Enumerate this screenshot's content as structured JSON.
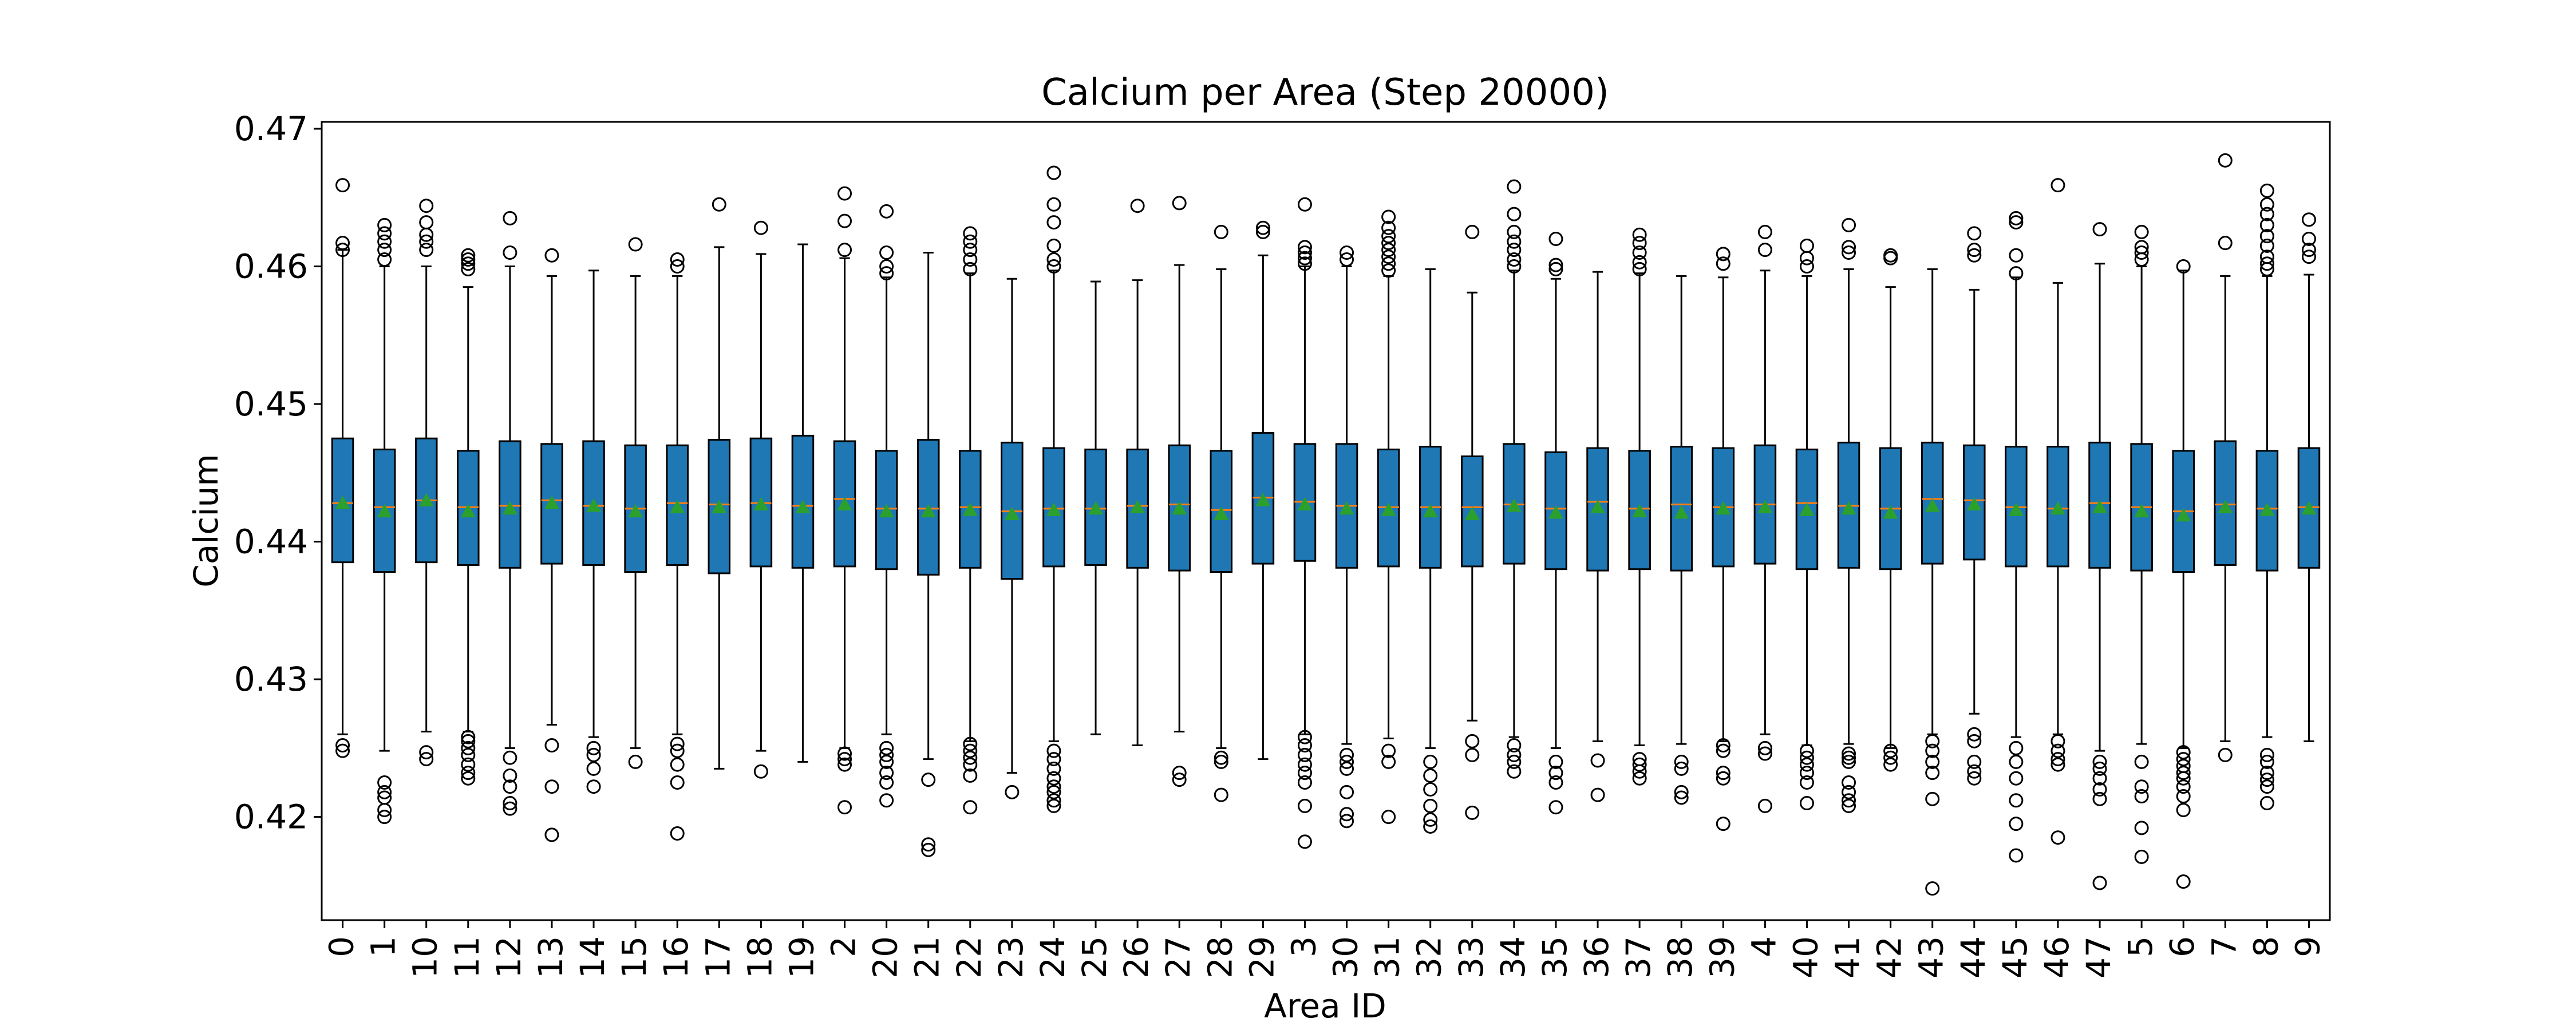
{
  "chart_data": {
    "type": "boxplot",
    "title": "Calcium per Area (Step 20000)",
    "xlabel": "Area ID",
    "ylabel": "Calcium",
    "ylim": [
      0.4125,
      0.4705
    ],
    "yticks": [
      0.42,
      0.43,
      0.44,
      0.45,
      0.46,
      0.47
    ],
    "grid": false,
    "colors": {
      "box_fill": "#1f77b4",
      "median": "#ff7f0e",
      "mean_marker": "#2ca02c",
      "edge": "#000000"
    },
    "boxes": [
      {
        "label": "0",
        "whislo": 0.426,
        "q1": 0.4385,
        "med": 0.4428,
        "mean": 0.4428,
        "q3": 0.4475,
        "whishi": 0.4612,
        "fliers": [
          0.4248,
          0.4252,
          0.4617,
          0.4612,
          0.4659
        ]
      },
      {
        "label": "1",
        "whislo": 0.4248,
        "q1": 0.4378,
        "med": 0.4425,
        "mean": 0.4422,
        "q3": 0.4467,
        "whishi": 0.46,
        "fliers": [
          0.42,
          0.4205,
          0.4214,
          0.4218,
          0.4225,
          0.4605,
          0.4612,
          0.4618,
          0.4624,
          0.463
        ]
      },
      {
        "label": "10",
        "whislo": 0.4262,
        "q1": 0.4385,
        "med": 0.443,
        "mean": 0.443,
        "q3": 0.4475,
        "whishi": 0.46,
        "fliers": [
          0.4242,
          0.4247,
          0.4612,
          0.4618,
          0.4623,
          0.4632,
          0.4644
        ]
      },
      {
        "label": "11",
        "whislo": 0.4262,
        "q1": 0.4383,
        "med": 0.4425,
        "mean": 0.4422,
        "q3": 0.4466,
        "whishi": 0.4585,
        "fliers": [
          0.4228,
          0.4232,
          0.4238,
          0.4245,
          0.425,
          0.4255,
          0.4258,
          0.4598,
          0.4602,
          0.4605,
          0.4608
        ]
      },
      {
        "label": "12",
        "whislo": 0.425,
        "q1": 0.4381,
        "med": 0.4426,
        "mean": 0.4424,
        "q3": 0.4473,
        "whishi": 0.46,
        "fliers": [
          0.4206,
          0.421,
          0.4222,
          0.423,
          0.4243,
          0.461,
          0.4635
        ]
      },
      {
        "label": "13",
        "whislo": 0.4267,
        "q1": 0.4384,
        "med": 0.443,
        "mean": 0.4428,
        "q3": 0.4471,
        "whishi": 0.4593,
        "fliers": [
          0.4187,
          0.4222,
          0.4252,
          0.4608
        ]
      },
      {
        "label": "14",
        "whislo": 0.4258,
        "q1": 0.4383,
        "med": 0.4426,
        "mean": 0.4426,
        "q3": 0.4473,
        "whishi": 0.4597,
        "fliers": [
          0.4222,
          0.4235,
          0.4245,
          0.425
        ]
      },
      {
        "label": "15",
        "whislo": 0.425,
        "q1": 0.4378,
        "med": 0.4424,
        "mean": 0.4422,
        "q3": 0.447,
        "whishi": 0.4593,
        "fliers": [
          0.424,
          0.4616
        ]
      },
      {
        "label": "16",
        "whislo": 0.426,
        "q1": 0.4383,
        "med": 0.4428,
        "mean": 0.4425,
        "q3": 0.447,
        "whishi": 0.4593,
        "fliers": [
          0.4188,
          0.4225,
          0.4238,
          0.4248,
          0.4253,
          0.46,
          0.4605
        ]
      },
      {
        "label": "17",
        "whislo": 0.4235,
        "q1": 0.4377,
        "med": 0.4427,
        "mean": 0.4425,
        "q3": 0.4474,
        "whishi": 0.4614,
        "fliers": [
          0.4645
        ]
      },
      {
        "label": "18",
        "whislo": 0.4248,
        "q1": 0.4382,
        "med": 0.4428,
        "mean": 0.4427,
        "q3": 0.4475,
        "whishi": 0.4609,
        "fliers": [
          0.4233,
          0.4628
        ]
      },
      {
        "label": "19",
        "whislo": 0.424,
        "q1": 0.4381,
        "med": 0.4426,
        "mean": 0.4425,
        "q3": 0.4477,
        "whishi": 0.4616,
        "fliers": []
      },
      {
        "label": "2",
        "whislo": 0.425,
        "q1": 0.4382,
        "med": 0.4431,
        "mean": 0.4427,
        "q3": 0.4473,
        "whishi": 0.4606,
        "fliers": [
          0.4207,
          0.4238,
          0.4242,
          0.4246,
          0.4612,
          0.4633,
          0.4653
        ]
      },
      {
        "label": "20",
        "whislo": 0.426,
        "q1": 0.438,
        "med": 0.4424,
        "mean": 0.4422,
        "q3": 0.4466,
        "whishi": 0.4592,
        "fliers": [
          0.4212,
          0.4225,
          0.4232,
          0.424,
          0.4245,
          0.425,
          0.4595,
          0.46,
          0.461,
          0.464
        ]
      },
      {
        "label": "21",
        "whislo": 0.4242,
        "q1": 0.4376,
        "med": 0.4424,
        "mean": 0.4422,
        "q3": 0.4474,
        "whishi": 0.461,
        "fliers": [
          0.4176,
          0.418,
          0.4227
        ]
      },
      {
        "label": "22",
        "whislo": 0.4255,
        "q1": 0.4381,
        "med": 0.4425,
        "mean": 0.4423,
        "q3": 0.4466,
        "whishi": 0.4595,
        "fliers": [
          0.4207,
          0.423,
          0.4238,
          0.4243,
          0.4248,
          0.4253,
          0.4598,
          0.4605,
          0.4612,
          0.4618,
          0.4624
        ]
      },
      {
        "label": "23",
        "whislo": 0.4232,
        "q1": 0.4373,
        "med": 0.4422,
        "mean": 0.442,
        "q3": 0.4472,
        "whishi": 0.4591,
        "fliers": [
          0.4218
        ]
      },
      {
        "label": "24",
        "whislo": 0.4255,
        "q1": 0.4382,
        "med": 0.4424,
        "mean": 0.4423,
        "q3": 0.4468,
        "whishi": 0.4597,
        "fliers": [
          0.4208,
          0.4212,
          0.4218,
          0.4222,
          0.4228,
          0.4235,
          0.4242,
          0.4248,
          0.46,
          0.4605,
          0.4615,
          0.4632,
          0.4645,
          0.4668
        ]
      },
      {
        "label": "25",
        "whislo": 0.426,
        "q1": 0.4383,
        "med": 0.4424,
        "mean": 0.4424,
        "q3": 0.4467,
        "whishi": 0.4589,
        "fliers": []
      },
      {
        "label": "26",
        "whislo": 0.4252,
        "q1": 0.4381,
        "med": 0.4426,
        "mean": 0.4425,
        "q3": 0.4467,
        "whishi": 0.459,
        "fliers": [
          0.4644
        ]
      },
      {
        "label": "27",
        "whislo": 0.4262,
        "q1": 0.4379,
        "med": 0.4427,
        "mean": 0.4424,
        "q3": 0.447,
        "whishi": 0.4601,
        "fliers": [
          0.4227,
          0.4232,
          0.4646
        ]
      },
      {
        "label": "28",
        "whislo": 0.425,
        "q1": 0.4378,
        "med": 0.4423,
        "mean": 0.442,
        "q3": 0.4466,
        "whishi": 0.4598,
        "fliers": [
          0.4216,
          0.424,
          0.4243,
          0.4625
        ]
      },
      {
        "label": "29",
        "whislo": 0.4242,
        "q1": 0.4384,
        "med": 0.4432,
        "mean": 0.443,
        "q3": 0.4479,
        "whishi": 0.4608,
        "fliers": [
          0.4625,
          0.4628
        ]
      },
      {
        "label": "3",
        "whislo": 0.426,
        "q1": 0.4386,
        "med": 0.4429,
        "mean": 0.4427,
        "q3": 0.4471,
        "whishi": 0.46,
        "fliers": [
          0.4182,
          0.4208,
          0.4225,
          0.4232,
          0.4238,
          0.4245,
          0.4252,
          0.4258,
          0.4602,
          0.4606,
          0.461,
          0.4614,
          0.4645
        ]
      },
      {
        "label": "30",
        "whislo": 0.4253,
        "q1": 0.4381,
        "med": 0.4426,
        "mean": 0.4424,
        "q3": 0.4471,
        "whishi": 0.46,
        "fliers": [
          0.4197,
          0.4202,
          0.4218,
          0.4235,
          0.424,
          0.4245,
          0.4605,
          0.461
        ]
      },
      {
        "label": "31",
        "whislo": 0.4257,
        "q1": 0.4382,
        "med": 0.4425,
        "mean": 0.4423,
        "q3": 0.4467,
        "whishi": 0.4593,
        "fliers": [
          0.42,
          0.424,
          0.4248,
          0.4597,
          0.4602,
          0.4607,
          0.4612,
          0.4617,
          0.4622,
          0.4628,
          0.4636
        ]
      },
      {
        "label": "32",
        "whislo": 0.425,
        "q1": 0.4381,
        "med": 0.4425,
        "mean": 0.4422,
        "q3": 0.4469,
        "whishi": 0.4598,
        "fliers": [
          0.4193,
          0.4198,
          0.4208,
          0.422,
          0.423,
          0.424
        ]
      },
      {
        "label": "33",
        "whislo": 0.427,
        "q1": 0.4382,
        "med": 0.4425,
        "mean": 0.442,
        "q3": 0.4462,
        "whishi": 0.4581,
        "fliers": [
          0.4203,
          0.4245,
          0.4255,
          0.4625
        ]
      },
      {
        "label": "34",
        "whislo": 0.4258,
        "q1": 0.4384,
        "med": 0.4427,
        "mean": 0.4426,
        "q3": 0.4471,
        "whishi": 0.4597,
        "fliers": [
          0.4233,
          0.424,
          0.4245,
          0.4252,
          0.46,
          0.4605,
          0.4612,
          0.4618,
          0.4625,
          0.4638,
          0.4658
        ]
      },
      {
        "label": "35",
        "whislo": 0.425,
        "q1": 0.438,
        "med": 0.4424,
        "mean": 0.4421,
        "q3": 0.4465,
        "whishi": 0.4591,
        "fliers": [
          0.4207,
          0.4225,
          0.4232,
          0.424,
          0.4598,
          0.4601,
          0.462
        ]
      },
      {
        "label": "36",
        "whislo": 0.4255,
        "q1": 0.4379,
        "med": 0.4429,
        "mean": 0.4425,
        "q3": 0.4468,
        "whishi": 0.4596,
        "fliers": [
          0.4216,
          0.4241
        ]
      },
      {
        "label": "37",
        "whislo": 0.4252,
        "q1": 0.438,
        "med": 0.4424,
        "mean": 0.4422,
        "q3": 0.4466,
        "whishi": 0.4595,
        "fliers": [
          0.4228,
          0.4233,
          0.4238,
          0.4242,
          0.4598,
          0.4603,
          0.461,
          0.4617,
          0.4623
        ]
      },
      {
        "label": "38",
        "whislo": 0.4253,
        "q1": 0.4379,
        "med": 0.4427,
        "mean": 0.4421,
        "q3": 0.4469,
        "whishi": 0.4593,
        "fliers": [
          0.4214,
          0.4218,
          0.4235,
          0.424
        ]
      },
      {
        "label": "39",
        "whislo": 0.4255,
        "q1": 0.4382,
        "med": 0.4425,
        "mean": 0.4424,
        "q3": 0.4468,
        "whishi": 0.4592,
        "fliers": [
          0.4195,
          0.4228,
          0.4232,
          0.4248,
          0.4252,
          0.4602,
          0.4609
        ]
      },
      {
        "label": "4",
        "whislo": 0.426,
        "q1": 0.4384,
        "med": 0.4427,
        "mean": 0.4425,
        "q3": 0.447,
        "whishi": 0.4597,
        "fliers": [
          0.4208,
          0.4246,
          0.425,
          0.4612,
          0.4625
        ]
      },
      {
        "label": "40",
        "whislo": 0.4252,
        "q1": 0.438,
        "med": 0.4428,
        "mean": 0.4423,
        "q3": 0.4467,
        "whishi": 0.4593,
        "fliers": [
          0.421,
          0.4225,
          0.4232,
          0.4238,
          0.4243,
          0.4248,
          0.46,
          0.4606,
          0.4615
        ]
      },
      {
        "label": "41",
        "whislo": 0.4253,
        "q1": 0.4381,
        "med": 0.4426,
        "mean": 0.4424,
        "q3": 0.4472,
        "whishi": 0.4598,
        "fliers": [
          0.4208,
          0.4212,
          0.4218,
          0.4225,
          0.424,
          0.4243,
          0.4246,
          0.461,
          0.4614,
          0.463
        ]
      },
      {
        "label": "42",
        "whislo": 0.425,
        "q1": 0.438,
        "med": 0.4424,
        "mean": 0.4421,
        "q3": 0.4468,
        "whishi": 0.4585,
        "fliers": [
          0.4238,
          0.4243,
          0.4248,
          0.4606,
          0.4608
        ]
      },
      {
        "label": "43",
        "whislo": 0.426,
        "q1": 0.4384,
        "med": 0.4431,
        "mean": 0.4426,
        "q3": 0.4472,
        "whishi": 0.4598,
        "fliers": [
          0.4148,
          0.4213,
          0.4232,
          0.424,
          0.4248,
          0.4255
        ]
      },
      {
        "label": "44",
        "whislo": 0.4275,
        "q1": 0.4387,
        "med": 0.443,
        "mean": 0.4427,
        "q3": 0.447,
        "whishi": 0.4583,
        "fliers": [
          0.4228,
          0.4233,
          0.424,
          0.4255,
          0.426,
          0.4608,
          0.4612,
          0.4624
        ]
      },
      {
        "label": "45",
        "whislo": 0.4258,
        "q1": 0.4382,
        "med": 0.4425,
        "mean": 0.4423,
        "q3": 0.4469,
        "whishi": 0.4592,
        "fliers": [
          0.4172,
          0.4195,
          0.4212,
          0.4228,
          0.424,
          0.425,
          0.4595,
          0.4608,
          0.4632,
          0.4635
        ]
      },
      {
        "label": "46",
        "whislo": 0.426,
        "q1": 0.4382,
        "med": 0.4424,
        "mean": 0.4424,
        "q3": 0.4469,
        "whishi": 0.4588,
        "fliers": [
          0.4185,
          0.4238,
          0.4242,
          0.4248,
          0.4255,
          0.4659
        ]
      },
      {
        "label": "47",
        "whislo": 0.4248,
        "q1": 0.4381,
        "med": 0.4428,
        "mean": 0.4425,
        "q3": 0.4472,
        "whishi": 0.4602,
        "fliers": [
          0.4152,
          0.4213,
          0.422,
          0.4228,
          0.4235,
          0.424,
          0.4627
        ]
      },
      {
        "label": "5",
        "whislo": 0.4253,
        "q1": 0.4379,
        "med": 0.4425,
        "mean": 0.4422,
        "q3": 0.4471,
        "whishi": 0.46,
        "fliers": [
          0.4171,
          0.4192,
          0.4215,
          0.4222,
          0.424,
          0.4605,
          0.461,
          0.4614,
          0.4625
        ]
      },
      {
        "label": "6",
        "whislo": 0.425,
        "q1": 0.4378,
        "med": 0.4422,
        "mean": 0.4419,
        "q3": 0.4466,
        "whishi": 0.4597,
        "fliers": [
          0.4153,
          0.4205,
          0.4215,
          0.4222,
          0.4228,
          0.4232,
          0.4237,
          0.4242,
          0.4247,
          0.46
        ]
      },
      {
        "label": "7",
        "whislo": 0.4255,
        "q1": 0.4383,
        "med": 0.4427,
        "mean": 0.4425,
        "q3": 0.4473,
        "whishi": 0.4593,
        "fliers": [
          0.4245,
          0.4617,
          0.4677
        ]
      },
      {
        "label": "8",
        "whislo": 0.4258,
        "q1": 0.4379,
        "med": 0.4424,
        "mean": 0.4423,
        "q3": 0.4466,
        "whishi": 0.4593,
        "fliers": [
          0.421,
          0.4222,
          0.4227,
          0.4232,
          0.424,
          0.4245,
          0.4598,
          0.4602,
          0.4607,
          0.4615,
          0.4622,
          0.463,
          0.4638,
          0.4645,
          0.4655
        ]
      },
      {
        "label": "9",
        "whislo": 0.4255,
        "q1": 0.4381,
        "med": 0.4425,
        "mean": 0.4424,
        "q3": 0.4468,
        "whishi": 0.4594,
        "fliers": [
          0.4607,
          0.4612,
          0.462,
          0.4634
        ]
      }
    ]
  }
}
